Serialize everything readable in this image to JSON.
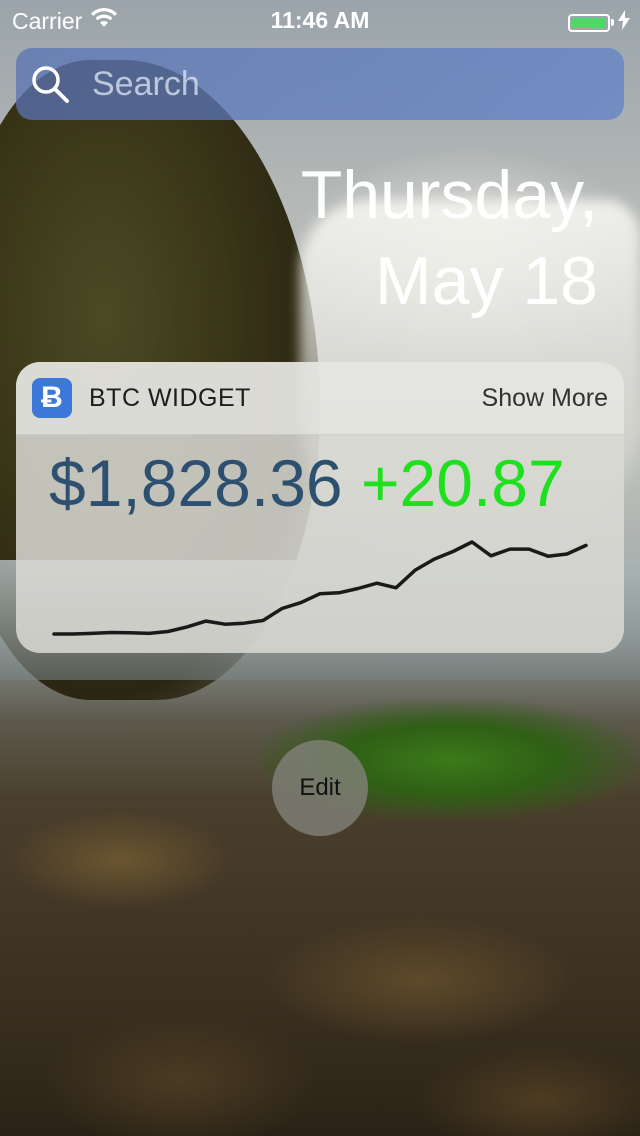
{
  "status_bar": {
    "carrier": "Carrier",
    "time": "11:46 AM",
    "battery_level": 1.0,
    "battery_color": "#4cd964"
  },
  "search": {
    "placeholder": "Search"
  },
  "date": {
    "line1": "Thursday,",
    "line2": "May 18"
  },
  "widget": {
    "app_icon": "Ƀ",
    "title": "BTC WIDGET",
    "show_more": "Show More",
    "price": "$1,828.36",
    "change": "+20.87",
    "price_color": "#2e5070",
    "change_color": "#1ee01e"
  },
  "chart_data": {
    "type": "line",
    "title": "",
    "xlabel": "",
    "ylabel": "",
    "grid": false,
    "values": [
      1808,
      1808,
      1808.2,
      1808.5,
      1808.4,
      1808.2,
      1808.8,
      1810.3,
      1812.2,
      1811.2,
      1811.5,
      1812.4,
      1816.3,
      1818.2,
      1821.1,
      1821.4,
      1822.8,
      1824.5,
      1823,
      1828.7,
      1832.3,
      1834.8,
      1837.9,
      1833.4,
      1835.6,
      1835.6,
      1833.3,
      1834,
      1836.8
    ],
    "color": "#1a1a1a"
  },
  "edit_button": {
    "label": "Edit"
  },
  "icons": {
    "search": "search-icon",
    "wifi": "wifi-icon",
    "battery": "battery-icon",
    "bolt": "bolt-icon",
    "app": "bitcoin-icon"
  }
}
